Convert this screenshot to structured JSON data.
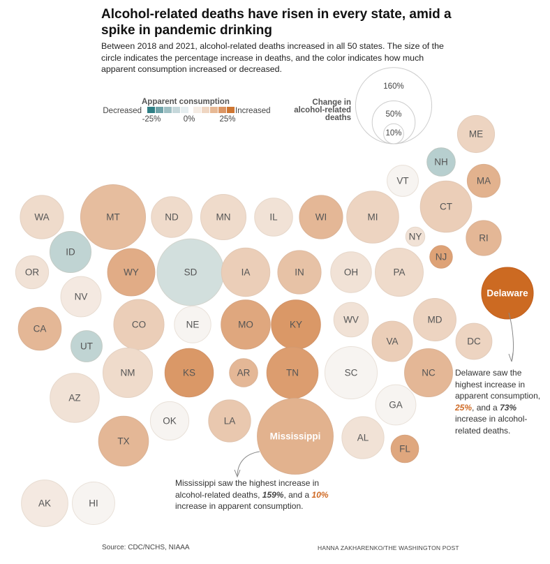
{
  "title": "Alcohol-related deaths have risen in every state, amid a spike in pandemic drinking",
  "subtitle": "Between 2018 and 2021, alcohol-related deaths increased in all 50 states. The size of the circle indicates the percentage increase in deaths, and the color indicates how much apparent consumption increased or decreased.",
  "legend": {
    "color_title": "Apparent consumption",
    "decreased": "Decreased",
    "increased": "Increased",
    "ticks": [
      "-25%",
      "0%",
      "25%"
    ],
    "colors": [
      "#2f7f85",
      "#6fa3a9",
      "#9fc0c4",
      "#c6d8db",
      "#e6eef0",
      "#f5ece4",
      "#efd6c2",
      "#e7b995",
      "#dc9664",
      "#cf7733"
    ],
    "size_title": "Change in alcohol-related deaths",
    "size_values": [
      "160%",
      "50%",
      "10%"
    ]
  },
  "annotations": {
    "delaware": {
      "pre": "Delaware saw the highest increase in apparent consumption,",
      "val1": "25%",
      "mid": ", and a",
      "val2": "73%",
      "post": "increase in alcohol-related deaths."
    },
    "mississippi": {
      "pre": "Mississippi saw the highest increase in alcohol-related deaths,",
      "val1": "159%",
      "mid": ", and a",
      "val2": "10%",
      "post": "increase in apparent consumption."
    }
  },
  "footer": {
    "source": "Source: CDC/NCHS, NIAAA",
    "credit": "HANNA ZAKHARENKO/THE WASHINGTON POST"
  },
  "chart_data": {
    "type": "bubble-tile-map",
    "title": "Alcohol-related deaths have risen in every state, amid a spike in pandemic drinking",
    "size_variable": "Change in alcohol-related deaths (%)",
    "color_variable": "Change in apparent consumption (%)",
    "color_range": [
      -25,
      25
    ],
    "states": [
      {
        "id": "ME",
        "label": "ME",
        "deaths_change": 37,
        "consumption_change": 4
      },
      {
        "id": "NH",
        "label": "NH",
        "deaths_change": 21,
        "consumption_change": -6
      },
      {
        "id": "VT",
        "label": "VT",
        "deaths_change": 26,
        "consumption_change": 0
      },
      {
        "id": "MA",
        "label": "MA",
        "deaths_change": 29,
        "consumption_change": 10
      },
      {
        "id": "WA",
        "label": "WA",
        "deaths_change": 51,
        "consumption_change": 3
      },
      {
        "id": "MT",
        "label": "MT",
        "deaths_change": 116,
        "consumption_change": 8
      },
      {
        "id": "ND",
        "label": "ND",
        "deaths_change": 45,
        "consumption_change": 3
      },
      {
        "id": "MN",
        "label": "MN",
        "deaths_change": 56,
        "consumption_change": 3
      },
      {
        "id": "IL",
        "label": "IL",
        "deaths_change": 39,
        "consumption_change": 2
      },
      {
        "id": "WI",
        "label": "WI",
        "deaths_change": 51,
        "consumption_change": 9
      },
      {
        "id": "MI",
        "label": "MI",
        "deaths_change": 74,
        "consumption_change": 4
      },
      {
        "id": "CT",
        "label": "CT",
        "deaths_change": 72,
        "consumption_change": 5
      },
      {
        "id": "NY",
        "label": "NY",
        "deaths_change": 9,
        "consumption_change": 2
      },
      {
        "id": "RI",
        "label": "RI",
        "deaths_change": 33,
        "consumption_change": 9
      },
      {
        "id": "ID",
        "label": "ID",
        "deaths_change": 46,
        "consumption_change": -5
      },
      {
        "id": "OR",
        "label": "OR",
        "deaths_change": 29,
        "consumption_change": 2
      },
      {
        "id": "WY",
        "label": "WY",
        "deaths_change": 61,
        "consumption_change": 11
      },
      {
        "id": "SD",
        "label": "SD",
        "deaths_change": 123,
        "consumption_change": -3
      },
      {
        "id": "IA",
        "label": "IA",
        "deaths_change": 64,
        "consumption_change": 5
      },
      {
        "id": "IN",
        "label": "IN",
        "deaths_change": 51,
        "consumption_change": 7
      },
      {
        "id": "OH",
        "label": "OH",
        "deaths_change": 45,
        "consumption_change": 2
      },
      {
        "id": "PA",
        "label": "PA",
        "deaths_change": 63,
        "consumption_change": 3
      },
      {
        "id": "NJ",
        "label": "NJ",
        "deaths_change": 13,
        "consumption_change": 13
      },
      {
        "id": "DE",
        "label": "Delaware",
        "deaths_change": 73,
        "consumption_change": 25
      },
      {
        "id": "NV",
        "label": "NV",
        "deaths_change": 44,
        "consumption_change": 1
      },
      {
        "id": "CA",
        "label": "CA",
        "deaths_change": 50,
        "consumption_change": 9
      },
      {
        "id": "UT",
        "label": "UT",
        "deaths_change": 26,
        "consumption_change": -5
      },
      {
        "id": "CO",
        "label": "CO",
        "deaths_change": 69,
        "consumption_change": 5
      },
      {
        "id": "NE",
        "label": "NE",
        "deaths_change": 36,
        "consumption_change": 0
      },
      {
        "id": "MO",
        "label": "MO",
        "deaths_change": 66,
        "consumption_change": 12
      },
      {
        "id": "KY",
        "label": "KY",
        "deaths_change": 66,
        "consumption_change": 15
      },
      {
        "id": "WV",
        "label": "WV",
        "deaths_change": 32,
        "consumption_change": 2
      },
      {
        "id": "VA",
        "label": "VA",
        "deaths_change": 44,
        "consumption_change": 5
      },
      {
        "id": "MD",
        "label": "MD",
        "deaths_change": 49,
        "consumption_change": 4
      },
      {
        "id": "DC",
        "label": "DC",
        "deaths_change": 35,
        "consumption_change": 4
      },
      {
        "id": "AZ",
        "label": "AZ",
        "deaths_change": 66,
        "consumption_change": 2
      },
      {
        "id": "NM",
        "label": "NM",
        "deaths_change": 67,
        "consumption_change": 3
      },
      {
        "id": "KS",
        "label": "KS",
        "deaths_change": 64,
        "consumption_change": 15
      },
      {
        "id": "AR",
        "label": "AR",
        "deaths_change": 21,
        "consumption_change": 9
      },
      {
        "id": "TN",
        "label": "TN",
        "deaths_change": 72,
        "consumption_change": 14
      },
      {
        "id": "SC",
        "label": "SC",
        "deaths_change": 75,
        "consumption_change": 0
      },
      {
        "id": "NC",
        "label": "NC",
        "deaths_change": 63,
        "consumption_change": 9
      },
      {
        "id": "GA",
        "label": "GA",
        "deaths_change": 44,
        "consumption_change": 0
      },
      {
        "id": "OK",
        "label": "OK",
        "deaths_change": 40,
        "consumption_change": 0
      },
      {
        "id": "LA",
        "label": "LA",
        "deaths_change": 48,
        "consumption_change": 6
      },
      {
        "id": "MS",
        "label": "Mississippi",
        "deaths_change": 159,
        "consumption_change": 10
      },
      {
        "id": "AL",
        "label": "AL",
        "deaths_change": 48,
        "consumption_change": 2
      },
      {
        "id": "FL",
        "label": "FL",
        "deaths_change": 20,
        "consumption_change": 12
      },
      {
        "id": "TX",
        "label": "TX",
        "deaths_change": 68,
        "consumption_change": 9
      },
      {
        "id": "AK",
        "label": "AK",
        "deaths_change": 59,
        "consumption_change": 1
      },
      {
        "id": "HI",
        "label": "HI",
        "deaths_change": 49,
        "consumption_change": 0
      }
    ]
  }
}
